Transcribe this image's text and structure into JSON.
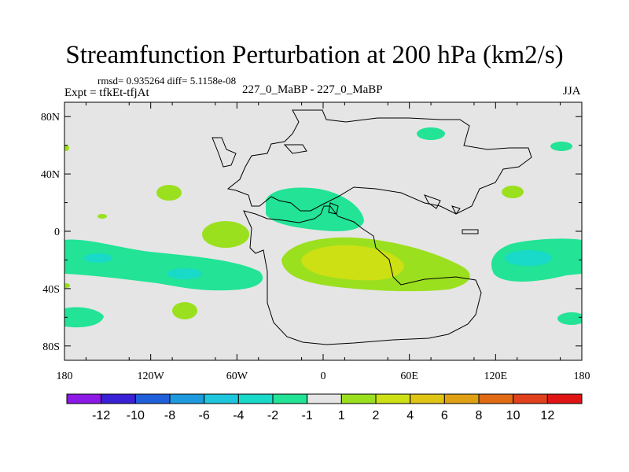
{
  "title": "Streamfunction Perturbation at 200 hPa (km2/s)",
  "stats": "rmsd= 0.935264  diff= 5.1158e-08",
  "expt_label": "Expt = tfkEt-tfjAt",
  "comparison_label": "227_0_MaBP - 227_0_MaBP",
  "season": "JJA",
  "x_axis_ticks": [
    "180",
    "120W",
    "60W",
    "0",
    "60E",
    "120E",
    "180"
  ],
  "y_axis_ticks": [
    "80N",
    "40N",
    "0",
    "40S",
    "80S"
  ],
  "colorbar": {
    "colors": [
      "#8c19e6",
      "#3a21d6",
      "#1f5fd9",
      "#1e9ade",
      "#1ec6de",
      "#19d9c8",
      "#22e396",
      "#e5e5e5",
      "#9be01e",
      "#cde014",
      "#e0c414",
      "#e0a014",
      "#e06b14",
      "#e0401c",
      "#e01414"
    ],
    "labels": [
      "-12",
      "-10",
      "-8",
      "-6",
      "-4",
      "-2",
      "-1",
      "1",
      "2",
      "4",
      "6",
      "8",
      "10",
      "12"
    ]
  },
  "map_data": {
    "background_fill": "#e5e5e5",
    "lon_range": [
      -180,
      180
    ],
    "lat_range": [
      -90,
      90
    ],
    "anomaly_regions": [
      {
        "level": "-1 to -2",
        "color": "#22e396",
        "where": "South Pacific band near 20S-40S, 180-140W"
      },
      {
        "level": "-2 to -4",
        "color": "#19d9c8",
        "where": "South Pacific near 20S, 150W and 28S, 100W"
      },
      {
        "level": "-1 to -2",
        "color": "#22e396",
        "where": "South America / South Atlantic near 25N"
      },
      {
        "level": "-1 to -2",
        "color": "#22e396",
        "where": "Eastern Pacific band near 15S-40S, 120E-180"
      },
      {
        "level": "-2 to -4",
        "color": "#19d9c8",
        "where": "near 20S, 150E"
      },
      {
        "level": "1 to 2",
        "color": "#9be01e",
        "where": "West Africa / Eastern Atlantic 15S-40S"
      },
      {
        "level": "2 to 4",
        "color": "#cde014",
        "where": "near 20S, 10E"
      }
    ]
  }
}
